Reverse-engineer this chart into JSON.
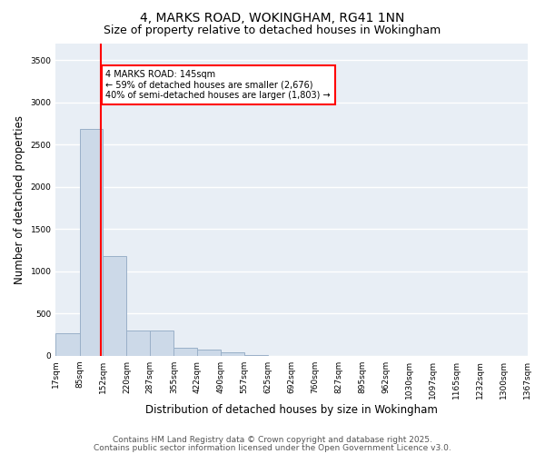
{
  "title1": "4, MARKS ROAD, WOKINGHAM, RG41 1NN",
  "title2": "Size of property relative to detached houses in Wokingham",
  "xlabel": "Distribution of detached houses by size in Wokingham",
  "ylabel": "Number of detached properties",
  "bin_edges": [
    17,
    85,
    152,
    220,
    287,
    355,
    422,
    490,
    557,
    625,
    692,
    760,
    827,
    895,
    962,
    1030,
    1097,
    1165,
    1232,
    1300,
    1367
  ],
  "bar_heights": [
    270,
    2680,
    1180,
    300,
    300,
    100,
    70,
    40,
    5,
    3,
    2,
    1,
    1,
    0,
    0,
    0,
    0,
    0,
    0,
    0
  ],
  "bar_color": "#ccd9e8",
  "bar_edge_color": "#9ab0c8",
  "bar_linewidth": 0.7,
  "red_line_x": 145,
  "red_line_color": "red",
  "annotation_text": "4 MARKS ROAD: 145sqm\n← 59% of detached houses are smaller (2,676)\n40% of semi-detached houses are larger (1,803) →",
  "annotation_box_color": "white",
  "annotation_box_edge": "red",
  "ylim": [
    0,
    3700
  ],
  "xlim": [
    17,
    1367
  ],
  "bg_color": "#e8eef5",
  "grid_color": "white",
  "footer1": "Contains HM Land Registry data © Crown copyright and database right 2025.",
  "footer2": "Contains public sector information licensed under the Open Government Licence v3.0.",
  "title_fontsize": 10,
  "subtitle_fontsize": 9,
  "tick_fontsize": 6.5,
  "label_fontsize": 8.5,
  "footer_fontsize": 6.5,
  "yticks": [
    0,
    500,
    1000,
    1500,
    2000,
    2500,
    3000,
    3500
  ]
}
